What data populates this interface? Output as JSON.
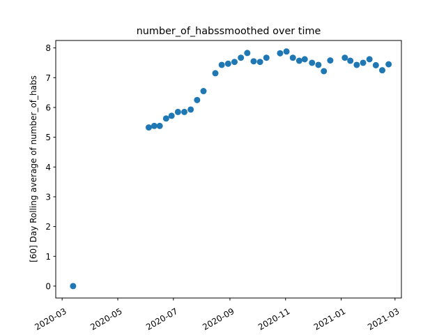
{
  "chart_data": {
    "type": "scatter",
    "title": "number_of_habssmoothed over time",
    "xlabel": "",
    "ylabel": "[60] Day Rolling average of number_of_habs",
    "x_ticks": [
      "2020-03-01",
      "2020-05-01",
      "2020-07-01",
      "2020-09-01",
      "2020-11-01",
      "2021-01-01",
      "2021-03-01"
    ],
    "x_tick_labels": [
      "2020-03",
      "2020-05",
      "2020-07",
      "2020-09",
      "2020-11",
      "2021-01",
      "2021-03"
    ],
    "y_ticks": [
      0,
      1,
      2,
      3,
      4,
      5,
      6,
      7,
      8
    ],
    "xlim": [
      "2020-02-23",
      "2021-03-08"
    ],
    "ylim": [
      -0.4,
      8.25
    ],
    "grid": false,
    "marker_color": "#1f77b4",
    "points": [
      {
        "x": "2020-03-13",
        "y": 0.0
      },
      {
        "x": "2020-06-04",
        "y": 5.33
      },
      {
        "x": "2020-06-10",
        "y": 5.38
      },
      {
        "x": "2020-06-16",
        "y": 5.38
      },
      {
        "x": "2020-06-23",
        "y": 5.63
      },
      {
        "x": "2020-06-29",
        "y": 5.72
      },
      {
        "x": "2020-07-06",
        "y": 5.85
      },
      {
        "x": "2020-07-13",
        "y": 5.85
      },
      {
        "x": "2020-07-20",
        "y": 5.93
      },
      {
        "x": "2020-07-27",
        "y": 6.25
      },
      {
        "x": "2020-08-03",
        "y": 6.55
      },
      {
        "x": "2020-08-16",
        "y": 7.15
      },
      {
        "x": "2020-08-23",
        "y": 7.43
      },
      {
        "x": "2020-08-30",
        "y": 7.47
      },
      {
        "x": "2020-09-06",
        "y": 7.53
      },
      {
        "x": "2020-09-13",
        "y": 7.67
      },
      {
        "x": "2020-09-20",
        "y": 7.83
      },
      {
        "x": "2020-09-27",
        "y": 7.55
      },
      {
        "x": "2020-10-04",
        "y": 7.53
      },
      {
        "x": "2020-10-11",
        "y": 7.67
      },
      {
        "x": "2020-10-26",
        "y": 7.82
      },
      {
        "x": "2020-11-02",
        "y": 7.88
      },
      {
        "x": "2020-11-09",
        "y": 7.67
      },
      {
        "x": "2020-11-16",
        "y": 7.57
      },
      {
        "x": "2020-11-22",
        "y": 7.62
      },
      {
        "x": "2020-11-30",
        "y": 7.5
      },
      {
        "x": "2020-12-07",
        "y": 7.43
      },
      {
        "x": "2020-12-13",
        "y": 7.22
      },
      {
        "x": "2020-12-20",
        "y": 7.58
      },
      {
        "x": "2021-01-05",
        "y": 7.67
      },
      {
        "x": "2021-01-11",
        "y": 7.57
      },
      {
        "x": "2021-01-18",
        "y": 7.43
      },
      {
        "x": "2021-01-25",
        "y": 7.5
      },
      {
        "x": "2021-02-01",
        "y": 7.62
      },
      {
        "x": "2021-02-08",
        "y": 7.42
      },
      {
        "x": "2021-02-15",
        "y": 7.25
      },
      {
        "x": "2021-02-22",
        "y": 7.45
      }
    ]
  }
}
